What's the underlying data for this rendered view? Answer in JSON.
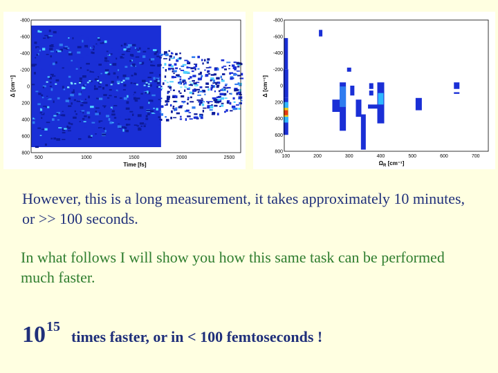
{
  "plots": {
    "left": {
      "ylabel": "Δ [cm⁻¹]",
      "xlabel": "Time [fs]",
      "yticks": [
        "-800",
        "-600",
        "-400",
        "-200",
        "0",
        "200",
        "400",
        "600",
        "800"
      ],
      "xticks": [
        "500",
        "1000",
        "1500",
        "2000",
        "2500"
      ],
      "ylim": [
        -800,
        800
      ],
      "xlim": [
        420,
        2620
      ]
    },
    "right": {
      "ylabel": "Δ [cm⁻¹]",
      "xlabel": "Ω",
      "xlabel_sub": "R",
      "xlabel_unit": " [cm⁻¹]",
      "yticks": [
        "-800",
        "-600",
        "-400",
        "-200",
        "0",
        "200",
        "400",
        "600",
        "800"
      ],
      "xticks": [
        "100",
        "200",
        "300",
        "400",
        "500",
        "600",
        "700"
      ],
      "ylim": [
        -800,
        800
      ],
      "xlim": [
        95,
        740
      ]
    }
  },
  "text": {
    "para1": "However, this is a long measurement, it takes approximately 10 minutes, or >> 100 seconds.",
    "para2": "In what follows I will show you how this same task can be performed much faster.",
    "big_base": "10",
    "big_exp": "15",
    "big_text": "times faster, or in < 100 femtoseconds !"
  },
  "colors": {
    "background": "#ffffe1",
    "para1": "#1f2f7a",
    "para2": "#2e7d2e",
    "plot_blue": "#1a2fd6"
  }
}
